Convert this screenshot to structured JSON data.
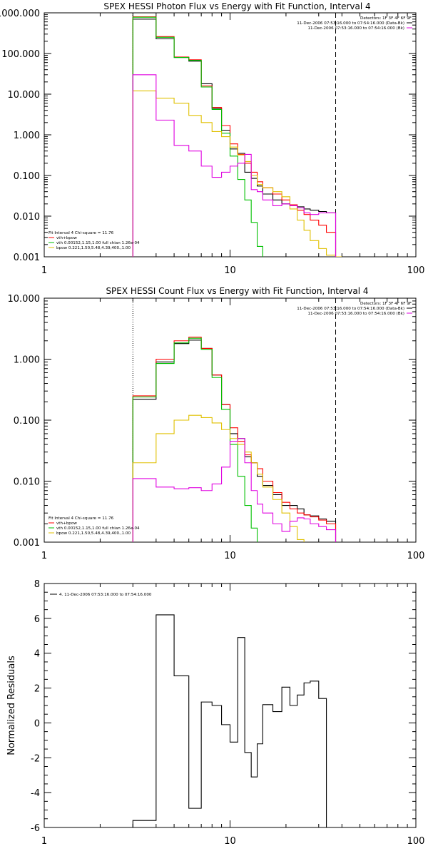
{
  "colors": {
    "data": "#000000",
    "total": "#ff0000",
    "vth": "#00c000",
    "bpow": "#e0c000",
    "bk": "#e000e0"
  },
  "chart_data": [
    {
      "type": "line",
      "title": "SPEX HESSI Photon Flux vs Energy with Fit Function, Interval 4",
      "xscale": "log",
      "yscale": "log",
      "xlim": [
        1,
        100
      ],
      "ylim": [
        0.001,
        1000
      ],
      "xticks": [
        {
          "v": 1,
          "label": "1"
        },
        {
          "v": 10,
          "label": "10"
        },
        {
          "v": 100,
          "label": "100"
        }
      ],
      "yticks": [
        {
          "v": 0.001,
          "label": "0.001"
        },
        {
          "v": 0.01,
          "label": "0.010"
        },
        {
          "v": 0.1,
          "label": "0.100"
        },
        {
          "v": 1,
          "label": "1.000"
        },
        {
          "v": 10,
          "label": "10.000"
        },
        {
          "v": 100,
          "label": "100.000"
        },
        {
          "v": 1000,
          "label": "1000.000"
        }
      ],
      "vlines": [
        {
          "x": 3.0,
          "style": "dotted"
        },
        {
          "x": 37,
          "style": "dashed"
        }
      ],
      "legend_right": {
        "detectors": "Detectors: 1F 3F 4F 6F 9F",
        "rows": [
          {
            "text": "11-Dec-2006 07:53:16.000 to 07:54:16.000 (Data-Bk)",
            "color": "data"
          },
          {
            "text": "11-Dec-2006 07:53:16.000 to 07:54:16.000 (Bk)",
            "color": "bk"
          }
        ]
      },
      "legend_left": {
        "header": "Fit Interval  4    Chi-square = 11.76",
        "rows": [
          {
            "text": "vth+bpow",
            "color": "total"
          },
          {
            "text": "vth 0.00152,1.15,1.00   full chian 1.26e-04",
            "color": "vth"
          },
          {
            "text": "bpow 0.221,1.50,5.48,4.39,400.,1.00",
            "color": "bpow"
          }
        ]
      },
      "edges": [
        3,
        4,
        5,
        6,
        7,
        8,
        9,
        10,
        11,
        12,
        13,
        14,
        15,
        17,
        19,
        21,
        23,
        25,
        27,
        30,
        33,
        37,
        40,
        44
      ],
      "series": [
        {
          "name": "Data-Bk",
          "color": "data",
          "values": [
            700,
            230,
            80,
            65,
            18,
            4.5,
            1.3,
            0.45,
            0.35,
            0.12,
            0.085,
            0.055,
            0.035,
            0.025,
            0.02,
            0.018,
            0.017,
            0.015,
            0.014,
            0.013,
            0.012,
            null,
            null
          ]
        },
        {
          "name": "vth+bpow",
          "color": "total",
          "values": [
            800,
            260,
            82,
            70,
            16,
            4.7,
            1.7,
            0.6,
            0.33,
            0.2,
            0.12,
            0.07,
            0.05,
            0.035,
            0.025,
            0.019,
            0.014,
            0.011,
            0.008,
            0.006,
            0.004,
            null,
            null
          ]
        },
        {
          "name": "vth",
          "color": "vth",
          "values": [
            780,
            250,
            80,
            68,
            15,
            4.2,
            1.1,
            0.3,
            0.08,
            0.025,
            0.007,
            0.0018,
            null,
            null,
            null,
            null,
            null,
            null,
            null,
            null,
            null,
            null,
            null
          ]
        },
        {
          "name": "bpow",
          "color": "bpow",
          "values": [
            12,
            8,
            6,
            3,
            2,
            1.2,
            0.9,
            0.5,
            0.32,
            0.22,
            0.1,
            0.06,
            0.05,
            0.04,
            0.03,
            0.015,
            0.008,
            0.0045,
            0.0025,
            0.0016,
            0.0011,
            0.001,
            null
          ]
        },
        {
          "name": "Bk",
          "color": "bk",
          "values": [
            30,
            2.3,
            0.55,
            0.4,
            0.17,
            0.09,
            0.12,
            0.17,
            0.2,
            0.33,
            0.045,
            0.04,
            0.025,
            0.018,
            0.02,
            0.018,
            0.016,
            0.012,
            0.011,
            0.012,
            0.012,
            null,
            null
          ]
        }
      ]
    },
    {
      "type": "line",
      "title": "SPEX HESSI Count Flux vs Energy with Fit Function, Interval 4",
      "xscale": "log",
      "yscale": "log",
      "xlim": [
        1,
        100
      ],
      "ylim": [
        0.001,
        10
      ],
      "xticks": [
        {
          "v": 1,
          "label": "1"
        },
        {
          "v": 10,
          "label": "10"
        },
        {
          "v": 100,
          "label": "100"
        }
      ],
      "yticks": [
        {
          "v": 0.001,
          "label": "0.001"
        },
        {
          "v": 0.01,
          "label": "0.010"
        },
        {
          "v": 0.1,
          "label": "0.100"
        },
        {
          "v": 1,
          "label": "1.000"
        },
        {
          "v": 10,
          "label": "10.000"
        }
      ],
      "vlines": [
        {
          "x": 3.0,
          "style": "dotted"
        },
        {
          "x": 37,
          "style": "dashed"
        }
      ],
      "legend_right": {
        "detectors": "Detectors: 1F 3F 4F 6F 9F",
        "rows": [
          {
            "text": "11-Dec-2006 07:53:16.000 to 07:54:16.000 (Data-Bk)",
            "color": "data"
          },
          {
            "text": "11-Dec-2006 07:53:16.000 to 07:54:16.000 (Bk)",
            "color": "bk"
          }
        ]
      },
      "legend_left": {
        "header": "Fit Interval  4    Chi-square = 11.76",
        "rows": [
          {
            "text": "vth+bpow",
            "color": "total"
          },
          {
            "text": "vth 0.00152,1.15,1.00   full chian 1.26e-04",
            "color": "vth"
          },
          {
            "text": "bpow 0.221,1.50,5.48,4.39,400.,1.00",
            "color": "bpow"
          }
        ]
      },
      "edges": [
        3,
        4,
        5,
        6,
        7,
        8,
        9,
        10,
        11,
        12,
        13,
        14,
        15,
        17,
        19,
        21,
        23,
        25,
        27,
        30,
        33,
        37
      ],
      "series": [
        {
          "name": "Data-Bk",
          "color": "data",
          "values": [
            0.22,
            0.9,
            1.8,
            2.05,
            1.5,
            0.55,
            0.18,
            0.06,
            0.05,
            0.025,
            0.02,
            0.012,
            0.0085,
            0.006,
            0.004,
            0.004,
            0.0035,
            0.0028,
            0.0027,
            0.0024,
            0.0022
          ]
        },
        {
          "name": "vth+bpow",
          "color": "total",
          "values": [
            0.25,
            1.0,
            2.0,
            2.3,
            1.5,
            0.55,
            0.18,
            0.075,
            0.045,
            0.027,
            0.02,
            0.016,
            0.01,
            0.0065,
            0.0045,
            0.0035,
            0.003,
            0.0028,
            0.0026,
            0.0023,
            0.002
          ]
        },
        {
          "name": "vth",
          "color": "vth",
          "values": [
            0.24,
            0.85,
            1.85,
            2.2,
            1.45,
            0.5,
            0.15,
            0.04,
            0.012,
            0.004,
            0.0017,
            null,
            null,
            null,
            null,
            null,
            null,
            null,
            null,
            null,
            null
          ]
        },
        {
          "name": "bpow",
          "color": "bpow",
          "values": [
            0.02,
            0.06,
            0.1,
            0.12,
            0.11,
            0.09,
            0.07,
            0.05,
            0.04,
            0.03,
            0.02,
            0.013,
            0.008,
            0.005,
            0.003,
            0.0018,
            0.0011,
            null,
            null,
            null,
            null
          ]
        },
        {
          "name": "Bk",
          "color": "bk",
          "values": [
            0.011,
            0.008,
            0.0075,
            0.0078,
            0.007,
            0.009,
            0.017,
            0.045,
            0.05,
            0.02,
            0.007,
            0.0042,
            0.003,
            0.002,
            0.0015,
            0.0022,
            0.0025,
            0.0024,
            0.002,
            0.0018,
            0.0016
          ]
        }
      ]
    },
    {
      "type": "line",
      "title": "",
      "ylabel": "Normalized Residuals",
      "xscale": "log",
      "yscale": "linear",
      "xlim": [
        1,
        100
      ],
      "ylim": [
        -6,
        8
      ],
      "xticks": [
        {
          "v": 1,
          "label": "1"
        },
        {
          "v": 10,
          "label": "10"
        },
        {
          "v": 100,
          "label": "100"
        }
      ],
      "yticks": [
        {
          "v": -6,
          "label": "-6"
        },
        {
          "v": -4,
          "label": "-4"
        },
        {
          "v": -2,
          "label": "-2"
        },
        {
          "v": 0,
          "label": "0"
        },
        {
          "v": 2,
          "label": "2"
        },
        {
          "v": 4,
          "label": "4"
        },
        {
          "v": 6,
          "label": "6"
        },
        {
          "v": 8,
          "label": "8"
        }
      ],
      "legend_left_top": {
        "rows": [
          {
            "text": "4. 11-Dec-2006 07:53:16.000 to 07:54:16.000",
            "color": "data"
          }
        ]
      },
      "edges": [
        3,
        4,
        5,
        6,
        7,
        8,
        9,
        10,
        11,
        12,
        13,
        14,
        15,
        17,
        19,
        21,
        23,
        25,
        27,
        30,
        33,
        37
      ],
      "series": [
        {
          "name": "4. 11-Dec-2006 07:53:16.000 to 07:54:16.000",
          "color": "data",
          "values": [
            -5.6,
            6.2,
            2.7,
            -4.9,
            1.2,
            1.0,
            -0.1,
            -1.1,
            4.9,
            -1.7,
            -3.1,
            -1.2,
            1.05,
            0.65,
            2.05,
            1.0,
            1.6,
            2.3,
            2.4,
            1.4,
            -6
          ]
        }
      ]
    }
  ]
}
